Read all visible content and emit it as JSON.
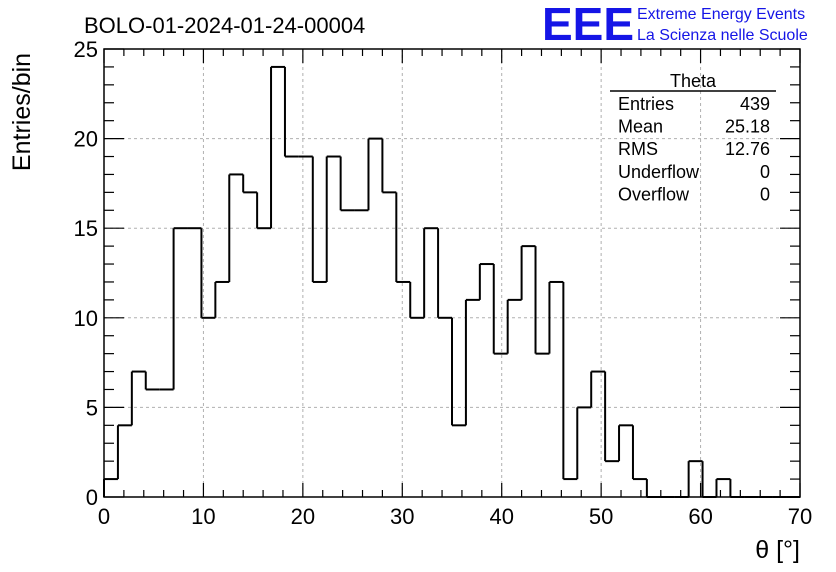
{
  "title": "BOLO-01-2024-01-24-00004",
  "logo": {
    "mark": "EEE",
    "line1": "Extreme Energy Events",
    "line2": "La Scienza nelle Scuole",
    "color": "#1515e6"
  },
  "stats": {
    "name": "Theta",
    "rows": [
      {
        "label": "Entries",
        "value": "439"
      },
      {
        "label": "Mean",
        "value": "25.18"
      },
      {
        "label": "RMS",
        "value": "12.76"
      },
      {
        "label": "Underflow",
        "value": "0"
      },
      {
        "label": "Overflow",
        "value": "0"
      }
    ]
  },
  "chart_data": {
    "type": "bar",
    "style": "step-histogram",
    "xlabel": "θ [°]",
    "ylabel": "Entries/bin",
    "xlim": [
      0,
      70
    ],
    "ylim": [
      0,
      25
    ],
    "x_ticks": [
      0,
      10,
      20,
      30,
      40,
      50,
      60,
      70
    ],
    "y_ticks": [
      0,
      5,
      10,
      15,
      20,
      25
    ],
    "bin_width": 1.4,
    "bin_edges_start": 0,
    "values": [
      1,
      4,
      7,
      6,
      6,
      15,
      15,
      10,
      12,
      18,
      17,
      15,
      24,
      19,
      19,
      12,
      19,
      16,
      16,
      20,
      17,
      12,
      10,
      15,
      10,
      4,
      11,
      13,
      8,
      11,
      14,
      8,
      12,
      1,
      5,
      7,
      2,
      4,
      1,
      0,
      0,
      0,
      2,
      0,
      1,
      0,
      0,
      0,
      0,
      0
    ],
    "grid": true,
    "legend": "none"
  }
}
